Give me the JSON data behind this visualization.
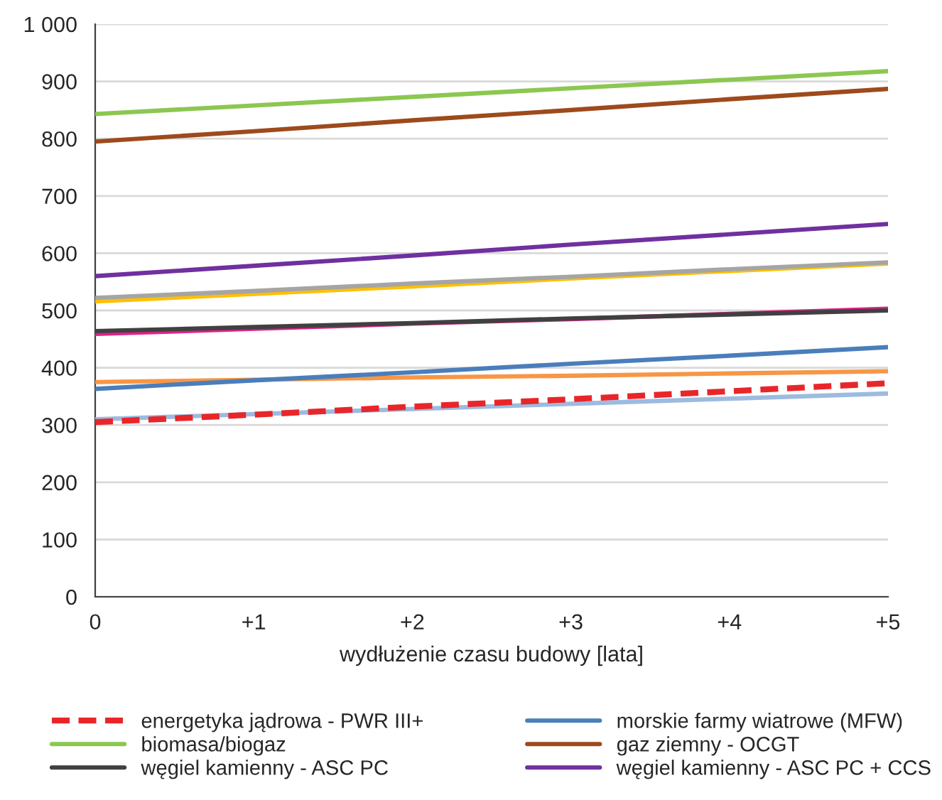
{
  "chart_data": {
    "type": "line",
    "xlabel": "wydłużenie czasu budowy [lata]",
    "categories": [
      "0",
      "+1",
      "+2",
      "+3",
      "+4",
      "+5"
    ],
    "ylim": [
      0,
      1000
    ],
    "yticks": [
      0,
      100,
      200,
      300,
      400,
      500,
      600,
      700,
      800,
      900,
      {
        "value": 1000,
        "label": "1 000"
      }
    ],
    "grid": "y",
    "legend": "bottom",
    "marker": "none",
    "series": [
      {
        "name": "energetyka jądrowa - PWR III+",
        "color": "#e8262a",
        "line_style": "dashed",
        "values": [
          305,
          318,
          332,
          345,
          359,
          373
        ]
      },
      {
        "name": "morskie farmy wiatrowe (MFW)",
        "color": "#4a7ebb",
        "values": [
          363,
          378,
          392,
          407,
          421,
          436
        ]
      },
      {
        "name": "biomasa/biogaz",
        "color": "#8cc751",
        "values": [
          843,
          858,
          873,
          888,
          903,
          918
        ]
      },
      {
        "name": "gaz ziemny - OCGT",
        "color": "#9e4a1c",
        "values": [
          795,
          813,
          832,
          850,
          869,
          887
        ]
      },
      {
        "name": "węgiel kamienny - ASC PC",
        "color": "#404040",
        "values": [
          464,
          471,
          478,
          486,
          493,
          500
        ]
      },
      {
        "name": "węgiel kamienny - ASC PC + CCS",
        "color": "#7030a0",
        "values": [
          560,
          578,
          596,
          615,
          633,
          651
        ]
      },
      {
        "color": "#a5a5a5",
        "values": [
          522,
          534,
          547,
          559,
          572,
          584
        ]
      },
      {
        "color": "#ffc000",
        "values": [
          516,
          529,
          542,
          556,
          569,
          582
        ]
      },
      {
        "color": "#e0218a",
        "values": [
          459,
          468,
          477,
          485,
          494,
          503
        ]
      },
      {
        "color": "#f79646",
        "values": [
          375,
          379,
          383,
          386,
          390,
          394
        ]
      },
      {
        "color": "#9dbbe0",
        "values": [
          310,
          319,
          328,
          337,
          346,
          355
        ]
      }
    ]
  }
}
